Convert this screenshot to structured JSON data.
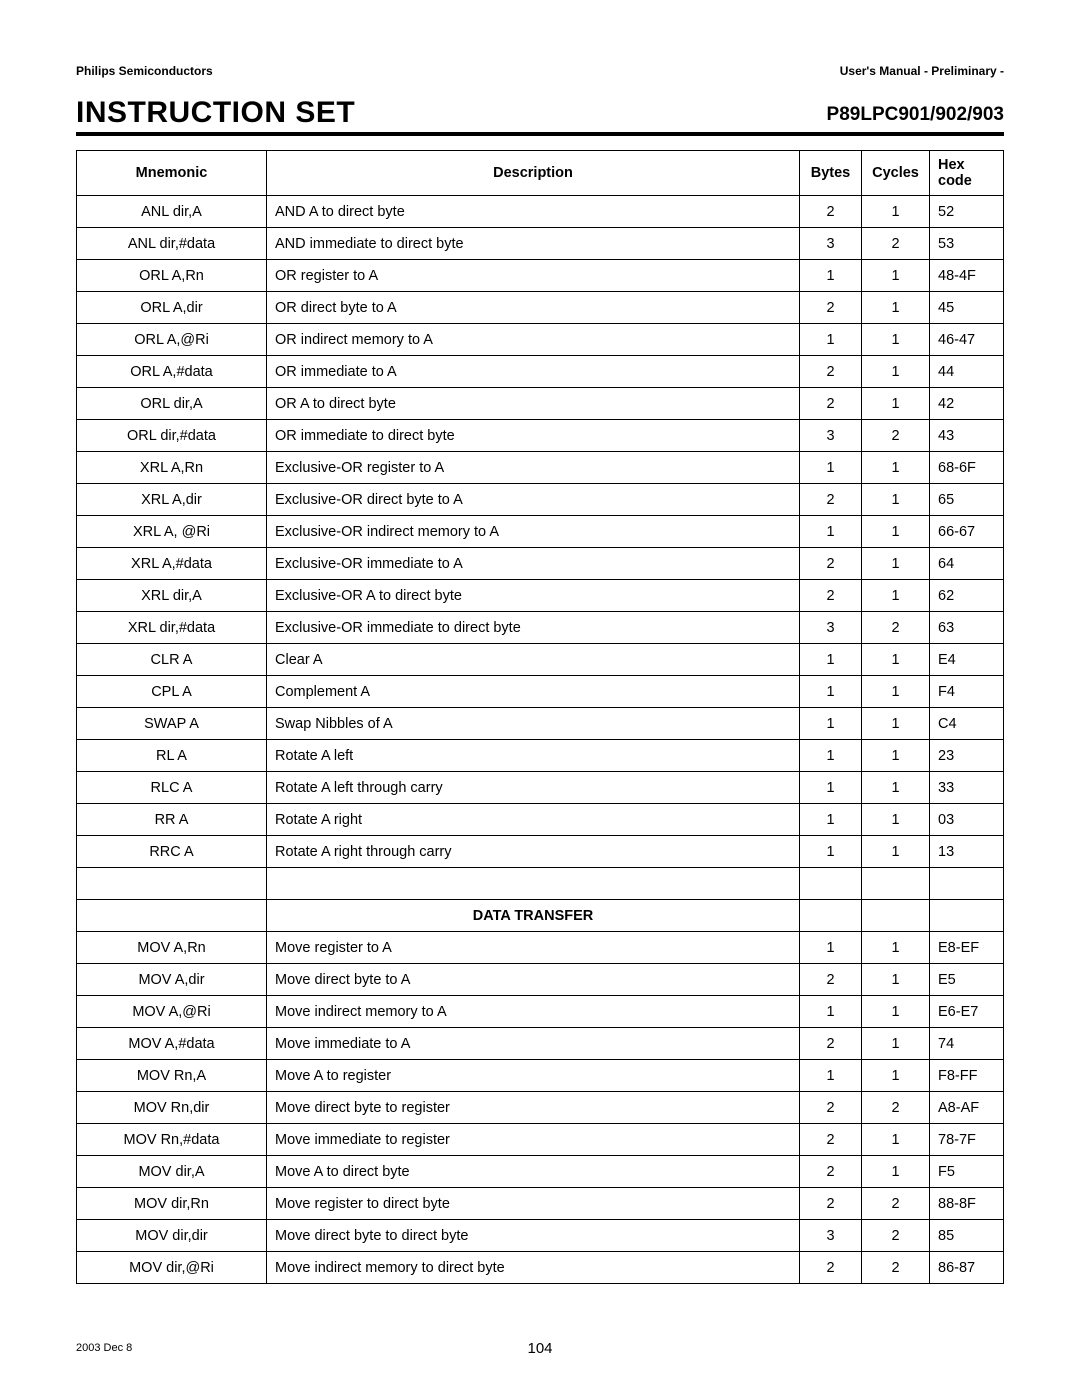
{
  "header": {
    "company": "Philips Semiconductors",
    "doc_label": "User's Manual - Preliminary -",
    "title": "INSTRUCTION SET",
    "part": "P89LPC901/902/903"
  },
  "table": {
    "columns": {
      "mnemonic": "Mnemonic",
      "description": "Description",
      "bytes": "Bytes",
      "cycles": "Cycles",
      "hex": "Hex code"
    },
    "section1_rows": [
      {
        "mnemonic": "ANL dir,A",
        "desc": "AND A to direct byte",
        "bytes": "2",
        "cycles": "1",
        "hex": "52"
      },
      {
        "mnemonic": "ANL dir,#data",
        "desc": "AND immediate to direct byte",
        "bytes": "3",
        "cycles": "2",
        "hex": "53"
      },
      {
        "mnemonic": "ORL A,Rn",
        "desc": "OR register to A",
        "bytes": "1",
        "cycles": "1",
        "hex": "48-4F"
      },
      {
        "mnemonic": "ORL A,dir",
        "desc": "OR direct byte to A",
        "bytes": "2",
        "cycles": "1",
        "hex": "45"
      },
      {
        "mnemonic": "ORL A,@Ri",
        "desc": "OR indirect memory to A",
        "bytes": "1",
        "cycles": "1",
        "hex": "46-47"
      },
      {
        "mnemonic": "ORL A,#data",
        "desc": "OR immediate to A",
        "bytes": "2",
        "cycles": "1",
        "hex": "44"
      },
      {
        "mnemonic": "ORL dir,A",
        "desc": "OR A to direct byte",
        "bytes": "2",
        "cycles": "1",
        "hex": "42"
      },
      {
        "mnemonic": "ORL dir,#data",
        "desc": "OR immediate to direct byte",
        "bytes": "3",
        "cycles": "2",
        "hex": "43"
      },
      {
        "mnemonic": "XRL A,Rn",
        "desc": "Exclusive-OR register to A",
        "bytes": "1",
        "cycles": "1",
        "hex": "68-6F"
      },
      {
        "mnemonic": "XRL A,dir",
        "desc": "Exclusive-OR direct byte to A",
        "bytes": "2",
        "cycles": "1",
        "hex": "65"
      },
      {
        "mnemonic": "XRL A, @Ri",
        "desc": "Exclusive-OR indirect memory to A",
        "bytes": "1",
        "cycles": "1",
        "hex": "66-67"
      },
      {
        "mnemonic": "XRL A,#data",
        "desc": "Exclusive-OR immediate to A",
        "bytes": "2",
        "cycles": "1",
        "hex": "64"
      },
      {
        "mnemonic": "XRL dir,A",
        "desc": "Exclusive-OR A to direct byte",
        "bytes": "2",
        "cycles": "1",
        "hex": "62"
      },
      {
        "mnemonic": "XRL dir,#data",
        "desc": "Exclusive-OR immediate to direct byte",
        "bytes": "3",
        "cycles": "2",
        "hex": "63"
      },
      {
        "mnemonic": "CLR A",
        "desc": "Clear A",
        "bytes": "1",
        "cycles": "1",
        "hex": "E4"
      },
      {
        "mnemonic": "CPL A",
        "desc": "Complement A",
        "bytes": "1",
        "cycles": "1",
        "hex": "F4"
      },
      {
        "mnemonic": "SWAP A",
        "desc": "Swap Nibbles of A",
        "bytes": "1",
        "cycles": "1",
        "hex": "C4"
      },
      {
        "mnemonic": "RL A",
        "desc": "Rotate A left",
        "bytes": "1",
        "cycles": "1",
        "hex": "23"
      },
      {
        "mnemonic": "RLC A",
        "desc": "Rotate A left through carry",
        "bytes": "1",
        "cycles": "1",
        "hex": "33"
      },
      {
        "mnemonic": "RR A",
        "desc": "Rotate A right",
        "bytes": "1",
        "cycles": "1",
        "hex": "03"
      },
      {
        "mnemonic": "RRC A",
        "desc": "Rotate A right through carry",
        "bytes": "1",
        "cycles": "1",
        "hex": "13"
      }
    ],
    "section2_heading": "DATA TRANSFER",
    "section2_rows": [
      {
        "mnemonic": "MOV A,Rn",
        "desc": "Move register to A",
        "bytes": "1",
        "cycles": "1",
        "hex": "E8-EF"
      },
      {
        "mnemonic": "MOV A,dir",
        "desc": "Move direct byte to A",
        "bytes": "2",
        "cycles": "1",
        "hex": "E5"
      },
      {
        "mnemonic": "MOV A,@Ri",
        "desc": "Move indirect memory to A",
        "bytes": "1",
        "cycles": "1",
        "hex": "E6-E7"
      },
      {
        "mnemonic": "MOV A,#data",
        "desc": "Move immediate to A",
        "bytes": "2",
        "cycles": "1",
        "hex": "74"
      },
      {
        "mnemonic": "MOV Rn,A",
        "desc": "Move A to register",
        "bytes": "1",
        "cycles": "1",
        "hex": "F8-FF"
      },
      {
        "mnemonic": "MOV Rn,dir",
        "desc": "Move direct byte to register",
        "bytes": "2",
        "cycles": "2",
        "hex": "A8-AF"
      },
      {
        "mnemonic": "MOV Rn,#data",
        "desc": "Move immediate to register",
        "bytes": "2",
        "cycles": "1",
        "hex": "78-7F"
      },
      {
        "mnemonic": "MOV dir,A",
        "desc": "Move A to direct byte",
        "bytes": "2",
        "cycles": "1",
        "hex": "F5"
      },
      {
        "mnemonic": "MOV dir,Rn",
        "desc": "Move register to direct byte",
        "bytes": "2",
        "cycles": "2",
        "hex": "88-8F"
      },
      {
        "mnemonic": "MOV dir,dir",
        "desc": "Move direct byte to direct byte",
        "bytes": "3",
        "cycles": "2",
        "hex": "85"
      },
      {
        "mnemonic": "MOV dir,@Ri",
        "desc": "Move indirect memory to direct byte",
        "bytes": "2",
        "cycles": "2",
        "hex": "86-87"
      }
    ]
  },
  "footer": {
    "date": "2003 Dec 8",
    "page": "104"
  }
}
